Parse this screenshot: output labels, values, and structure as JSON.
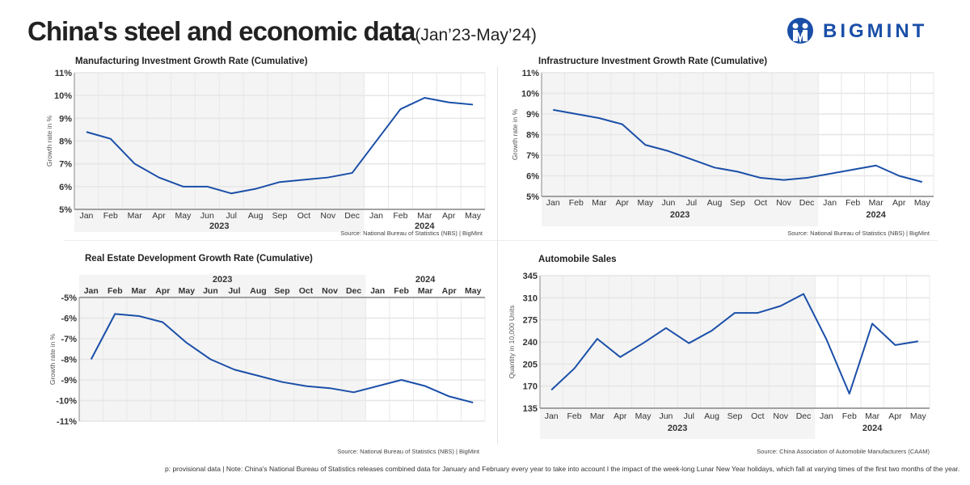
{
  "header": {
    "title": "China's steel and economic data",
    "subtitle": "(Jan’23-May’24)",
    "logo_text": "BIGMINT",
    "brand_color": "#1a4fa8"
  },
  "footnote": "p: provisional data | Note: China's National Bureau of Statistics releases combined data for January and February every year to take into account  I  the impact of the week-long Lunar New Year holidays, which fall at varying times of the first two months of the year.",
  "chart_data": [
    {
      "type": "line",
      "title": "Manufacturing Investment Growth Rate (Cumulative)",
      "ylabel": "Growth rate in %",
      "source": "Source: National Bureau of Statistics (NBS) | BigMint",
      "categories": [
        "Jan",
        "Feb",
        "Mar",
        "Apr",
        "May",
        "Jun",
        "Jul",
        "Aug",
        "Sep",
        "Oct",
        "Nov",
        "Dec",
        "Jan",
        "Feb",
        "Mar",
        "Apr",
        "May"
      ],
      "years": [
        {
          "label": "2023",
          "months": 12
        },
        {
          "label": "2024",
          "months": 5
        }
      ],
      "ylim": [
        5,
        11
      ],
      "yticks": [
        5,
        6,
        7,
        8,
        9,
        10,
        11
      ],
      "unit": "%",
      "grid": true,
      "color": "#1a4fa8",
      "values": [
        8.4,
        8.1,
        7.0,
        6.4,
        6.0,
        6.0,
        5.7,
        5.9,
        6.2,
        6.3,
        6.4,
        6.6,
        null,
        9.4,
        9.9,
        9.7,
        9.6
      ]
    },
    {
      "type": "line",
      "title": "Infrastructure Investment Growth Rate (Cumulative)",
      "ylabel": "Growth rate in %",
      "source": "Source: National Bureau of Statistics (NBS) | BigMint",
      "categories": [
        "Jan",
        "Feb",
        "Mar",
        "Apr",
        "May",
        "Jun",
        "Jul",
        "Aug",
        "Sep",
        "Oct",
        "Nov",
        "Dec",
        "Jan",
        "Feb",
        "Mar",
        "Apr",
        "May"
      ],
      "years": [
        {
          "label": "2023",
          "months": 12
        },
        {
          "label": "2024",
          "months": 5
        }
      ],
      "ylim": [
        5,
        11
      ],
      "yticks": [
        5,
        6,
        7,
        8,
        9,
        10,
        11
      ],
      "unit": "%",
      "grid": true,
      "color": "#1a4fa8",
      "values": [
        9.2,
        9.0,
        8.8,
        8.5,
        7.5,
        7.2,
        6.8,
        6.4,
        6.2,
        5.9,
        5.8,
        5.9,
        null,
        6.3,
        6.5,
        6.0,
        5.7
      ]
    },
    {
      "type": "line",
      "title": "Real Estate Development Growth Rate (Cumulative)",
      "ylabel": "Growth rate in %",
      "source": "Source: National Bureau of Statistics (NBS) | BigMint",
      "categories": [
        "Jan",
        "Feb",
        "Mar",
        "Apr",
        "May",
        "Jun",
        "Jul",
        "Aug",
        "Sep",
        "Oct",
        "Nov",
        "Dec",
        "Jan",
        "Feb",
        "Mar",
        "Apr",
        "May"
      ],
      "years": [
        {
          "label": "2023",
          "months": 12
        },
        {
          "label": "2024",
          "months": 5
        }
      ],
      "ylim": [
        -11,
        -5
      ],
      "yticks": [
        -11,
        -10,
        -9,
        -8,
        -7,
        -6,
        -5
      ],
      "unit": "%",
      "grid": true,
      "color": "#1a4fa8",
      "x_axis_position": "top",
      "values": [
        -8.0,
        -5.8,
        -5.9,
        -6.2,
        -7.2,
        -8.0,
        -8.5,
        -8.8,
        -9.1,
        -9.3,
        -9.4,
        -9.6,
        null,
        -9.0,
        -9.3,
        -9.8,
        -10.1
      ]
    },
    {
      "type": "line",
      "title": "Automobile Sales",
      "ylabel": "Quantity in 10,000 Units",
      "source": "Source: China Association of Automobile Manufacturers (CAAM)",
      "categories": [
        "Jan",
        "Feb",
        "Mar",
        "Apr",
        "May",
        "Jun",
        "Jul",
        "Aug",
        "Sep",
        "Oct",
        "Nov",
        "Dec",
        "Jan",
        "Feb",
        "Mar",
        "Apr",
        "May"
      ],
      "years": [
        {
          "label": "2023",
          "months": 12
        },
        {
          "label": "2024",
          "months": 5
        }
      ],
      "ylim": [
        135,
        345
      ],
      "yticks": [
        135,
        170,
        205,
        240,
        275,
        310,
        345
      ],
      "unit": "",
      "grid": true,
      "color": "#1a4fa8",
      "values": [
        164,
        198,
        245,
        216,
        238,
        262,
        238,
        258,
        286,
        286,
        297,
        316,
        244,
        158,
        269,
        235,
        241
      ]
    }
  ]
}
